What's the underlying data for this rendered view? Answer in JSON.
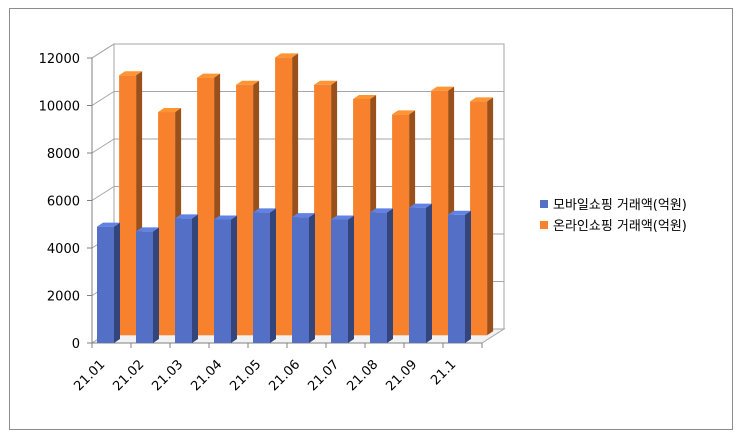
{
  "chart_data": {
    "type": "bar",
    "categories": [
      "21.01",
      "21.02",
      "21.03",
      "21.04",
      "21.05",
      "21.06",
      "21.07",
      "21.08",
      "21.09",
      "21.1"
    ],
    "series": [
      {
        "name": "모바일쇼핑 거래액(억원)",
        "color": "#5470c6",
        "values": [
          4900,
          4700,
          5250,
          5200,
          5500,
          5300,
          5200,
          5500,
          5700,
          5400
        ]
      },
      {
        "name": "온라인쇼핑 거래액(억원)",
        "color": "#f7812c",
        "values": [
          10950,
          9400,
          10850,
          10550,
          11700,
          10550,
          9950,
          9300,
          10300,
          9850
        ]
      }
    ],
    "ylim": [
      0,
      12000
    ],
    "yticks": [
      0,
      2000,
      4000,
      6000,
      8000,
      10000,
      12000
    ],
    "grid": true,
    "legend_position": "right",
    "bar_style": "3d"
  }
}
